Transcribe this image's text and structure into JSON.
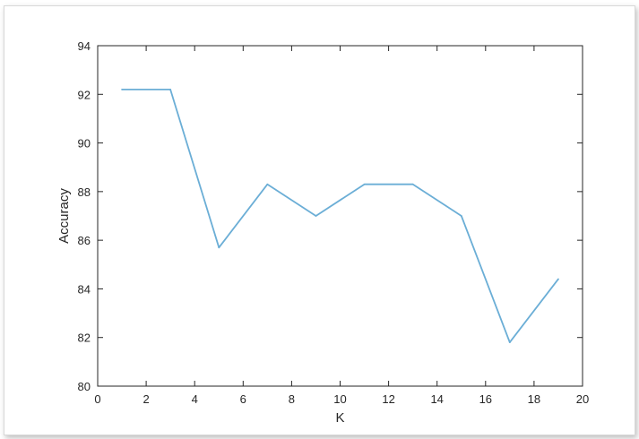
{
  "chart_data": {
    "type": "line",
    "xlabel": "K",
    "ylabel": "Accuracy",
    "xlim": [
      0,
      20
    ],
    "ylim": [
      80,
      94
    ],
    "xticks": [
      0,
      2,
      4,
      6,
      8,
      10,
      12,
      14,
      16,
      18,
      20
    ],
    "yticks": [
      80,
      82,
      84,
      86,
      88,
      90,
      92,
      94
    ],
    "grid": false,
    "series": [
      {
        "color": "#6baed6",
        "x": [
          1,
          3,
          5,
          7,
          9,
          11,
          13,
          15,
          17,
          19
        ],
        "y": [
          92.2,
          92.2,
          85.7,
          88.3,
          87.0,
          88.3,
          88.3,
          87.0,
          81.8,
          84.4
        ]
      }
    ]
  }
}
